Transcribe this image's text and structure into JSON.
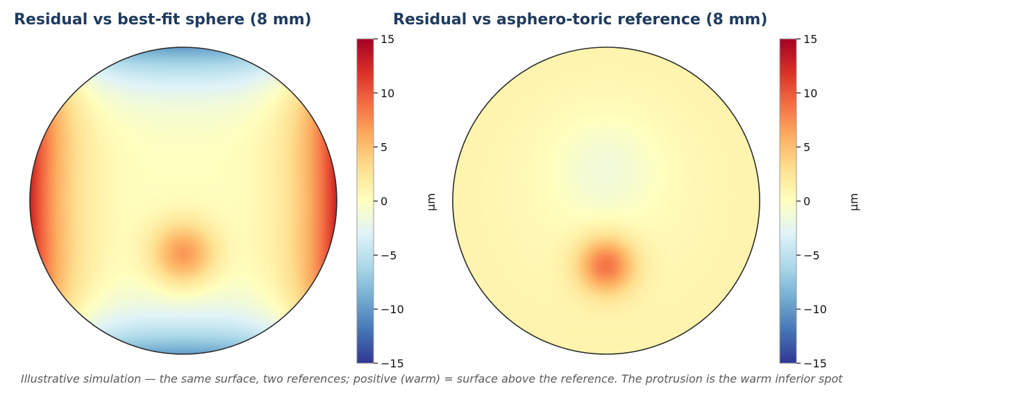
{
  "chart_data": [
    {
      "type": "heatmap",
      "title": "Residual vs best-fit sphere (8 mm)",
      "colorbar": {
        "label": "µm",
        "range": [
          -15,
          15
        ],
        "ticks": [
          15,
          10,
          5,
          0,
          -5,
          -10,
          -15
        ],
        "tick_labels": [
          "15",
          "10",
          "5",
          "0",
          "−5",
          "−10",
          "−15"
        ],
        "colormap": "RdYlBu_r"
      },
      "features": {
        "left_right_edges": 13,
        "top_bottom_edges": -10,
        "inferior_spot": 7,
        "center": 0
      }
    },
    {
      "type": "heatmap",
      "title": "Residual vs asphero-toric reference (8 mm)",
      "colorbar": {
        "label": "µm",
        "range": [
          -15,
          15
        ],
        "ticks": [
          15,
          10,
          5,
          0,
          -5,
          -10,
          -15
        ],
        "tick_labels": [
          "15",
          "10",
          "5",
          "0",
          "−5",
          "−10",
          "−15"
        ],
        "colormap": "RdYlBu_r"
      },
      "features": {
        "background": 1,
        "superior_center": -1,
        "inferior_spot": 8
      }
    }
  ],
  "caption": "Illustrative simulation — the same surface, two references; positive (warm) = surface above the reference. The protrusion is the warm inferior spot",
  "colormap_stops": [
    "#313695",
    "#4575b4",
    "#74add1",
    "#abd9e9",
    "#e0f3f8",
    "#ffffbf",
    "#fee090",
    "#fdae61",
    "#f46d43",
    "#d73027",
    "#a50026"
  ]
}
